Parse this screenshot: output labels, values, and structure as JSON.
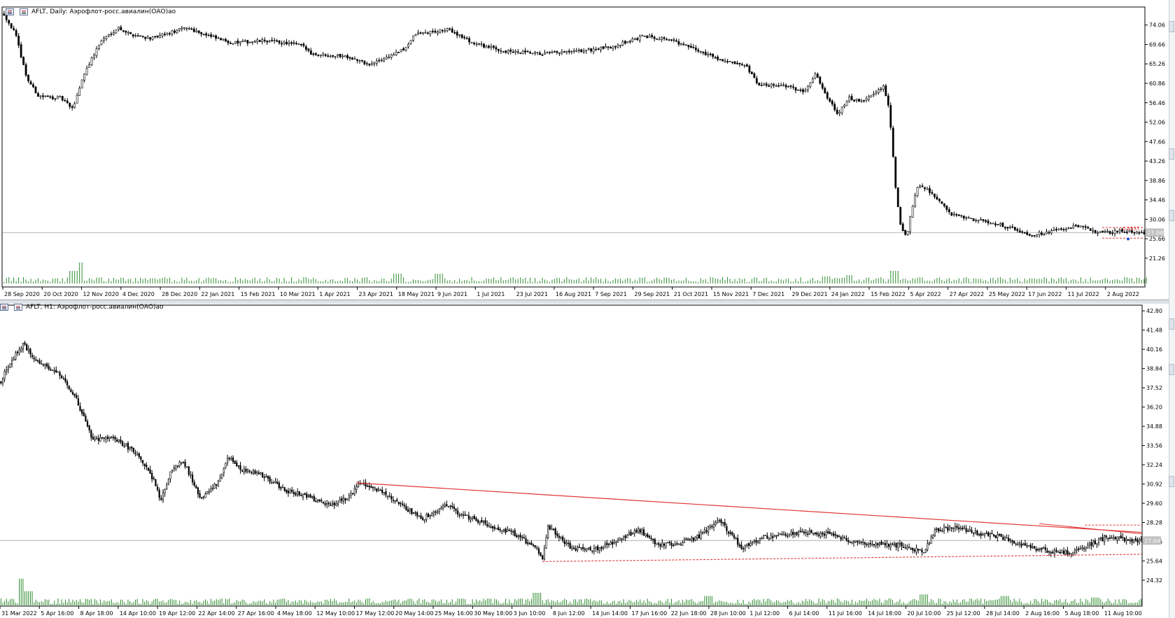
{
  "colors": {
    "candle": "#000000",
    "volume": "#2e8b2e",
    "trendline": "#e23636",
    "price_line": "#c0c0c0",
    "price_tag_bg": "#c0c0c0",
    "grid_text": "#000000"
  },
  "chart_top": {
    "title": "AFLT, Daily:  Аэрофлот-росс.авиалин(ОАО)ао",
    "icons": [
      "chart-window-icon",
      "indicator-window-icon"
    ],
    "price_label": "27.04",
    "trade_label": "0.5537",
    "price_axis": [
      "74.06",
      "69.66",
      "65.26",
      "60.86",
      "56.46",
      "52.06",
      "47.66",
      "43.26",
      "38.86",
      "34.46",
      "30.06",
      "25.66",
      "21.26"
    ],
    "time_axis": [
      "28 Sep 2020",
      "20 Oct 2020",
      "12 Nov 2020",
      "4 Dec 2020",
      "28 Dec 2020",
      "22 Jan 2021",
      "15 Feb 2021",
      "10 Mar 2021",
      "1 Apr 2021",
      "23 Apr 2021",
      "18 May 2021",
      "9 Jun 2021",
      "1 Jul 2021",
      "23 Jul 2021",
      "16 Aug 2021",
      "7 Sep 2021",
      "29 Sep 2021",
      "21 Oct 2021",
      "15 Nov 2021",
      "7 Dec 2021",
      "29 Dec 2021",
      "24 Jan 2022",
      "15 Feb 2022",
      "5 Apr 2022",
      "27 Apr 2022",
      "25 May 2022",
      "17 Jun 2022",
      "11 Jul 2022",
      "2 Aug 2022"
    ]
  },
  "chart_bottom": {
    "title": "AFLT, H1:  Аэрофлот-росс.авиалин(ОАО)ао",
    "price_label": "27.04",
    "price_axis": [
      "42.80",
      "41.48",
      "40.16",
      "38.84",
      "37.52",
      "36.20",
      "34.88",
      "33.56",
      "32.24",
      "30.92",
      "29.60",
      "28.28",
      "26.96",
      "25.64",
      "24.32"
    ],
    "time_axis": [
      "31 Mar 2022",
      "5 Apr 16:00",
      "8 Apr 18:00",
      "14 Apr 10:00",
      "19 Apr 12:00",
      "22 Apr 14:00",
      "27 Apr 16:00",
      "4 May 18:00",
      "12 May 10:00",
      "17 May 12:00",
      "20 May 14:00",
      "25 May 16:00",
      "30 May 18:00",
      "3 Jun 10:00",
      "8 Jun 12:00",
      "14 Jun 14:00",
      "17 Jun 16:00",
      "22 Jun 18:00",
      "28 Jun 10:00",
      "1 Jul 12:00",
      "6 Jul 14:00",
      "11 Jul 16:00",
      "14 Jul 18:00",
      "20 Jul 10:00",
      "25 Jul 12:00",
      "28 Jul 14:00",
      "2 Aug 16:00",
      "5 Aug 18:00",
      "11 Aug 10:00"
    ]
  },
  "chart_data": [
    {
      "type": "candlestick",
      "title": "AFLT, Daily:  Аэрофлот-росс.авиалин(ОАО)ао",
      "ylim": [
        19.5,
        77.5
      ],
      "x_labels": [
        "28 Sep 2020",
        "20 Oct 2020",
        "12 Nov 2020",
        "4 Dec 2020",
        "28 Dec 2020",
        "22 Jan 2021",
        "15 Feb 2021",
        "10 Mar 2021",
        "1 Apr 2021",
        "23 Apr 2021",
        "18 May 2021",
        "9 Jun 2021",
        "1 Jul 2021",
        "23 Jul 2021",
        "16 Aug 2021",
        "7 Sep 2021",
        "29 Sep 2021",
        "21 Oct 2021",
        "15 Nov 2021",
        "7 Dec 2021",
        "29 Dec 2021",
        "24 Jan 2022",
        "15 Feb 2022",
        "5 Apr 2022",
        "27 Apr 2022",
        "25 May 2022",
        "17 Jun 2022",
        "11 Jul 2022",
        "2 Aug 2022"
      ],
      "close_anchors": [
        [
          0,
          76.5
        ],
        [
          0.01,
          72.0
        ],
        [
          0.02,
          62.0
        ],
        [
          0.03,
          58.0
        ],
        [
          0.05,
          57.5
        ],
        [
          0.06,
          55.0
        ],
        [
          0.07,
          63.0
        ],
        [
          0.085,
          70.5
        ],
        [
          0.1,
          73.5
        ],
        [
          0.11,
          72.0
        ],
        [
          0.13,
          71.0
        ],
        [
          0.16,
          73.5
        ],
        [
          0.18,
          71.5
        ],
        [
          0.2,
          70.0
        ],
        [
          0.23,
          70.5
        ],
        [
          0.26,
          69.5
        ],
        [
          0.27,
          67.5
        ],
        [
          0.3,
          67.0
        ],
        [
          0.32,
          65.0
        ],
        [
          0.35,
          68.5
        ],
        [
          0.36,
          72.0
        ],
        [
          0.39,
          73.0
        ],
        [
          0.41,
          70.0
        ],
        [
          0.44,
          68.0
        ],
        [
          0.47,
          67.5
        ],
        [
          0.5,
          68.0
        ],
        [
          0.53,
          69.0
        ],
        [
          0.56,
          71.5
        ],
        [
          0.58,
          71.0
        ],
        [
          0.6,
          69.0
        ],
        [
          0.63,
          66.0
        ],
        [
          0.65,
          64.5
        ],
        [
          0.66,
          60.5
        ],
        [
          0.68,
          60.5
        ],
        [
          0.7,
          59.0
        ],
        [
          0.71,
          63.0
        ],
        [
          0.72,
          58.0
        ],
        [
          0.73,
          54.0
        ],
        [
          0.74,
          57.5
        ],
        [
          0.75,
          56.5
        ],
        [
          0.77,
          60.0
        ],
        [
          0.775,
          55.0
        ],
        [
          0.78,
          38.0
        ],
        [
          0.785,
          28.0
        ],
        [
          0.79,
          26.0
        ],
        [
          0.795,
          33.0
        ],
        [
          0.8,
          38.0
        ],
        [
          0.81,
          36.5
        ],
        [
          0.83,
          31.0
        ],
        [
          0.85,
          30.0
        ],
        [
          0.87,
          29.0
        ],
        [
          0.9,
          26.5
        ],
        [
          0.92,
          27.5
        ],
        [
          0.94,
          28.5
        ],
        [
          0.96,
          27.0
        ],
        [
          0.98,
          27.4
        ],
        [
          1.0,
          27.04
        ]
      ],
      "last_price": 27.04
    },
    {
      "type": "candlestick",
      "title": "AFLT, H1:  Аэрофлот-росс.авиалин(ОАО)ао",
      "ylim": [
        23.6,
        43.0
      ],
      "x_labels": [
        "31 Mar 2022",
        "5 Apr 16:00",
        "8 Apr 18:00",
        "14 Apr 10:00",
        "19 Apr 12:00",
        "22 Apr 14:00",
        "27 Apr 16:00",
        "4 May 18:00",
        "12 May 10:00",
        "17 May 12:00",
        "20 May 14:00",
        "25 May 16:00",
        "30 May 18:00",
        "3 Jun 10:00",
        "8 Jun 12:00",
        "14 Jun 14:00",
        "17 Jun 16:00",
        "22 Jun 18:00",
        "28 Jun 10:00",
        "1 Jul 12:00",
        "6 Jul 14:00",
        "11 Jul 16:00",
        "14 Jul 18:00",
        "20 Jul 10:00",
        "25 Jul 12:00",
        "28 Jul 14:00",
        "2 Aug 16:00",
        "5 Aug 18:00",
        "11 Aug 10:00"
      ],
      "close_anchors": [
        [
          0,
          38.0
        ],
        [
          0.01,
          39.5
        ],
        [
          0.02,
          40.5
        ],
        [
          0.03,
          39.5
        ],
        [
          0.05,
          38.5
        ],
        [
          0.065,
          37.0
        ],
        [
          0.08,
          34.0
        ],
        [
          0.1,
          34.0
        ],
        [
          0.12,
          33.0
        ],
        [
          0.135,
          31.0
        ],
        [
          0.14,
          29.8
        ],
        [
          0.15,
          32.0
        ],
        [
          0.16,
          32.5
        ],
        [
          0.175,
          30.0
        ],
        [
          0.19,
          31.0
        ],
        [
          0.2,
          32.8
        ],
        [
          0.21,
          32.0
        ],
        [
          0.23,
          31.5
        ],
        [
          0.25,
          30.5
        ],
        [
          0.27,
          30.0
        ],
        [
          0.29,
          29.5
        ],
        [
          0.305,
          30.0
        ],
        [
          0.315,
          31.0
        ],
        [
          0.33,
          30.5
        ],
        [
          0.35,
          29.5
        ],
        [
          0.37,
          28.5
        ],
        [
          0.39,
          29.5
        ],
        [
          0.4,
          29.0
        ],
        [
          0.415,
          28.5
        ],
        [
          0.43,
          28.0
        ],
        [
          0.45,
          27.5
        ],
        [
          0.47,
          26.5
        ],
        [
          0.475,
          25.8
        ],
        [
          0.48,
          28.0
        ],
        [
          0.5,
          26.5
        ],
        [
          0.52,
          26.4
        ],
        [
          0.54,
          27.0
        ],
        [
          0.56,
          27.8
        ],
        [
          0.575,
          26.8
        ],
        [
          0.59,
          26.8
        ],
        [
          0.61,
          27.2
        ],
        [
          0.63,
          28.5
        ],
        [
          0.65,
          26.5
        ],
        [
          0.67,
          27.3
        ],
        [
          0.69,
          27.5
        ],
        [
          0.71,
          27.6
        ],
        [
          0.73,
          27.4
        ],
        [
          0.75,
          26.9
        ],
        [
          0.77,
          26.8
        ],
        [
          0.79,
          26.7
        ],
        [
          0.81,
          26.3
        ],
        [
          0.82,
          27.8
        ],
        [
          0.84,
          27.9
        ],
        [
          0.86,
          27.5
        ],
        [
          0.88,
          27.2
        ],
        [
          0.9,
          26.6
        ],
        [
          0.92,
          26.3
        ],
        [
          0.935,
          26.2
        ],
        [
          0.95,
          26.6
        ],
        [
          0.97,
          27.3
        ],
        [
          0.99,
          27.1
        ],
        [
          1.0,
          27.04
        ]
      ],
      "trendline_upper": [
        [
          0.312,
          31.0
        ],
        [
          1.0,
          27.6
        ]
      ],
      "trendline_lower": [
        [
          0.475,
          25.6
        ],
        [
          1.0,
          26.1
        ]
      ],
      "last_price": 27.04
    }
  ]
}
